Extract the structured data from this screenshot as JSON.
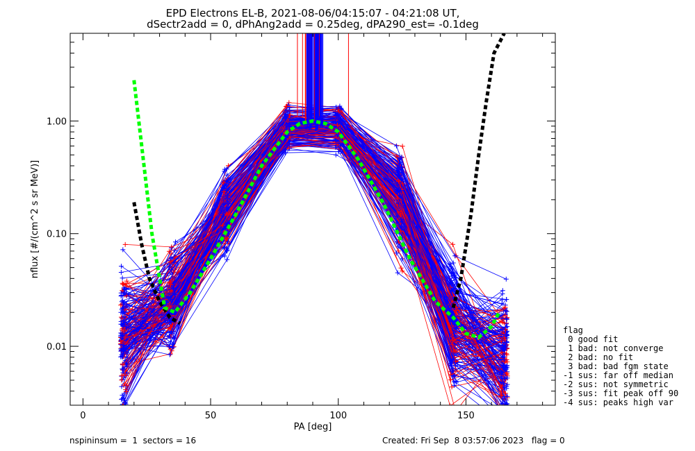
{
  "chart_data": {
    "type": "line",
    "title": "EPD Electrons EL-B, 2021-08-06/04:15:07 - 04:21:08 UT,",
    "subtitle": "dSectr2add = 0, dPhAng2add = 0.25deg, dPA290_est=  -0.1deg",
    "xlabel": "PA [deg]",
    "ylabel": "nflux [#/(cm^2 s sr MeV)]",
    "xlim": [
      -5,
      185
    ],
    "ylim": [
      0.003,
      6.0
    ],
    "yscale": "log",
    "x_ticks": [
      0,
      50,
      100,
      150
    ],
    "x_tick_labels": [
      "0",
      "50",
      "100",
      "150"
    ],
    "y_ticks": [
      0.01,
      0.1,
      1.0
    ],
    "y_tick_labels": [
      "0.01",
      "0.10",
      "1.00"
    ],
    "colors": {
      "red": "#ff0000",
      "blue": "#0000ff",
      "green": "#00ff00",
      "black": "#000000"
    },
    "sector_pa": [
      16,
      35,
      56,
      80,
      100,
      124,
      145,
      165
    ],
    "typical_profile": [
      0.012,
      0.025,
      0.15,
      0.85,
      0.85,
      0.2,
      0.015,
      0.008
    ],
    "green_fit": {
      "x": [
        20,
        23,
        27,
        32,
        36,
        42,
        50,
        60,
        70,
        80,
        85,
        90,
        95,
        100,
        108,
        118,
        128,
        138,
        145,
        150,
        155,
        160,
        163
      ],
      "y": [
        2.3,
        0.6,
        0.1,
        0.022,
        0.02,
        0.03,
        0.06,
        0.15,
        0.4,
        0.8,
        0.95,
        1.0,
        0.95,
        0.8,
        0.45,
        0.18,
        0.06,
        0.025,
        0.018,
        0.013,
        0.012,
        0.015,
        0.02
      ]
    },
    "black_fit": {
      "x": [
        20,
        23,
        26,
        30,
        34,
        38,
        145,
        148,
        152,
        155,
        158,
        161,
        165
      ],
      "y": [
        0.19,
        0.08,
        0.04,
        0.025,
        0.018,
        0.016,
        0.022,
        0.04,
        0.15,
        0.5,
        1.5,
        4.0,
        6.0
      ]
    },
    "legend": {
      "title": "flag",
      "entries": [
        " 0 good fit",
        " 1 bad: not converge",
        " 2 bad: no fit",
        " 3 bad: bad fgm state",
        "-1 sus: far off median",
        "-2 sus: not symmetric",
        "-3 sus: fit peak off 90",
        "-4 sus: peaks high var"
      ]
    }
  },
  "footer": {
    "left": "nspininsum =  1  sectors = 16",
    "right": "Created: Fri Sep  8 03:57:06 2023   flag = 0"
  }
}
